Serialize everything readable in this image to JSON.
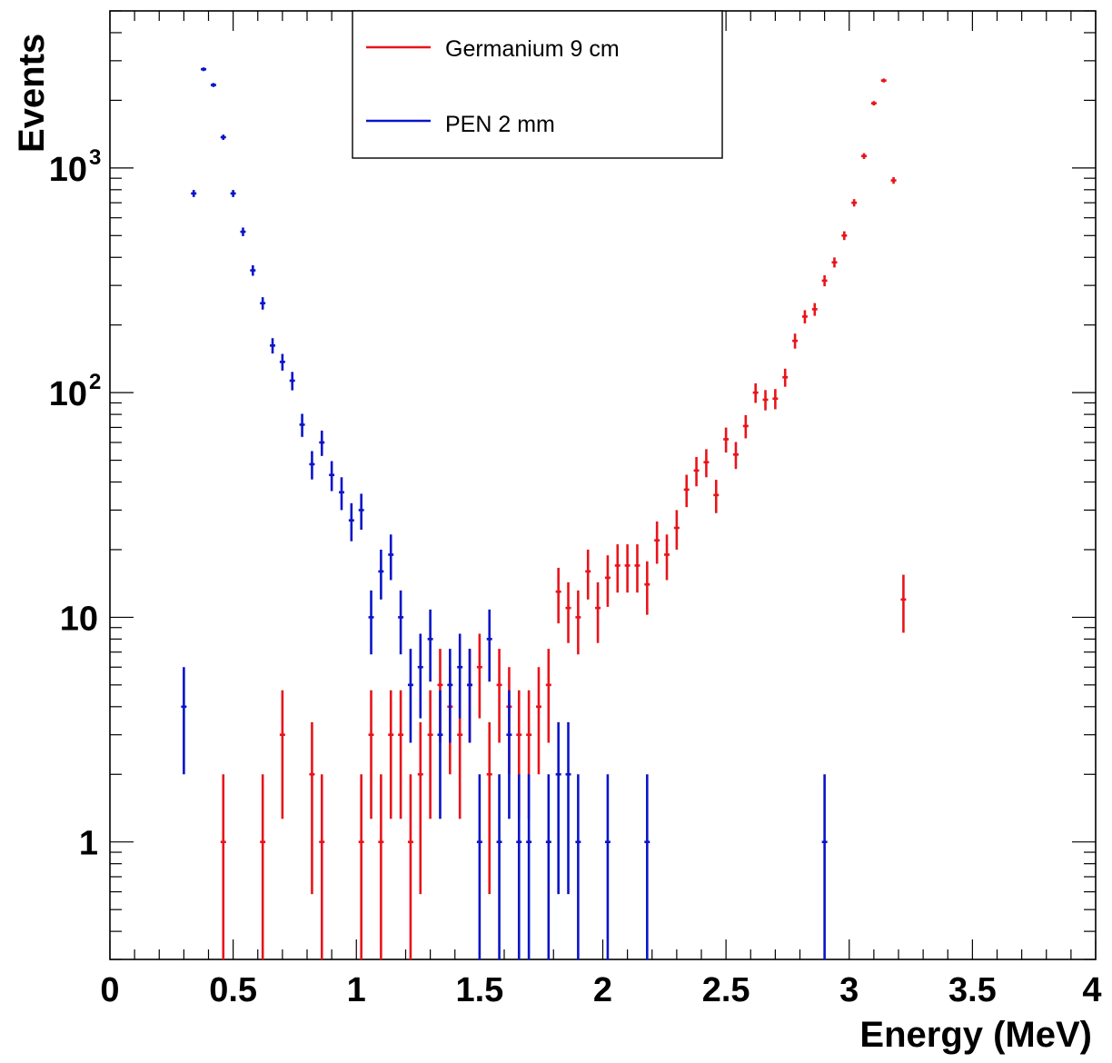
{
  "chart_data": {
    "type": "scatter",
    "title": "",
    "xlabel": "Energy (MeV)",
    "ylabel": "Events",
    "xlim": [
      0,
      4
    ],
    "ylim": [
      0.3,
      5000
    ],
    "yscale": "log",
    "grid": false,
    "legend_position": "top-center",
    "x_ticks": [
      "0",
      "0.5",
      "1",
      "1.5",
      "2",
      "2.5",
      "3",
      "3.5",
      "4"
    ],
    "y_ticks": [
      {
        "value": 1,
        "base": "1",
        "exp": ""
      },
      {
        "value": 10,
        "base": "10",
        "exp": ""
      },
      {
        "value": 100,
        "base": "10",
        "exp": "2"
      },
      {
        "value": 1000,
        "base": "10",
        "exp": "3"
      }
    ],
    "bin_width": 0.04,
    "series": [
      {
        "name": "Germanium 9 cm",
        "color": "#e8141b",
        "points": [
          [
            0.46,
            1
          ],
          [
            0.62,
            1
          ],
          [
            0.7,
            3
          ],
          [
            0.82,
            2
          ],
          [
            0.86,
            1
          ],
          [
            1.02,
            1
          ],
          [
            1.06,
            3
          ],
          [
            1.1,
            1
          ],
          [
            1.14,
            3
          ],
          [
            1.18,
            3
          ],
          [
            1.22,
            1
          ],
          [
            1.26,
            2
          ],
          [
            1.3,
            3
          ],
          [
            1.34,
            5
          ],
          [
            1.38,
            4
          ],
          [
            1.42,
            3
          ],
          [
            1.46,
            5
          ],
          [
            1.5,
            6
          ],
          [
            1.54,
            2
          ],
          [
            1.58,
            5
          ],
          [
            1.62,
            4
          ],
          [
            1.66,
            3
          ],
          [
            1.7,
            3
          ],
          [
            1.74,
            4
          ],
          [
            1.78,
            5
          ],
          [
            1.82,
            13
          ],
          [
            1.86,
            11
          ],
          [
            1.9,
            10
          ],
          [
            1.94,
            16
          ],
          [
            1.98,
            11
          ],
          [
            2.02,
            15
          ],
          [
            2.06,
            17
          ],
          [
            2.1,
            17
          ],
          [
            2.14,
            17
          ],
          [
            2.18,
            14
          ],
          [
            2.22,
            22
          ],
          [
            2.26,
            19
          ],
          [
            2.3,
            25
          ],
          [
            2.34,
            37
          ],
          [
            2.38,
            45
          ],
          [
            2.42,
            49
          ],
          [
            2.46,
            35
          ],
          [
            2.5,
            62
          ],
          [
            2.54,
            53
          ],
          [
            2.58,
            71
          ],
          [
            2.62,
            100
          ],
          [
            2.66,
            93
          ],
          [
            2.7,
            94
          ],
          [
            2.74,
            117
          ],
          [
            2.78,
            170
          ],
          [
            2.82,
            218
          ],
          [
            2.86,
            235
          ],
          [
            2.9,
            315
          ],
          [
            2.94,
            380
          ],
          [
            2.98,
            500
          ],
          [
            3.02,
            700
          ],
          [
            3.06,
            1130
          ],
          [
            3.1,
            1940
          ],
          [
            3.14,
            2450
          ],
          [
            3.18,
            880
          ],
          [
            3.22,
            12
          ]
        ]
      },
      {
        "name": "PEN 2 mm",
        "color": "#0a14c8",
        "points": [
          [
            0.3,
            4
          ],
          [
            0.34,
            770
          ],
          [
            0.38,
            2750
          ],
          [
            0.42,
            2340
          ],
          [
            0.46,
            1370
          ],
          [
            0.5,
            770
          ],
          [
            0.54,
            520
          ],
          [
            0.58,
            350
          ],
          [
            0.62,
            250
          ],
          [
            0.66,
            162
          ],
          [
            0.7,
            137
          ],
          [
            0.74,
            113
          ],
          [
            0.78,
            72
          ],
          [
            0.82,
            48
          ],
          [
            0.86,
            60
          ],
          [
            0.9,
            43
          ],
          [
            0.94,
            36
          ],
          [
            0.98,
            27
          ],
          [
            1.02,
            30
          ],
          [
            1.06,
            10
          ],
          [
            1.1,
            16
          ],
          [
            1.14,
            19
          ],
          [
            1.18,
            10
          ],
          [
            1.22,
            5
          ],
          [
            1.26,
            6
          ],
          [
            1.3,
            8
          ],
          [
            1.34,
            3
          ],
          [
            1.38,
            5
          ],
          [
            1.42,
            6
          ],
          [
            1.46,
            5
          ],
          [
            1.5,
            1
          ],
          [
            1.54,
            8
          ],
          [
            1.58,
            1
          ],
          [
            1.62,
            3
          ],
          [
            1.66,
            1
          ],
          [
            1.7,
            1
          ],
          [
            1.78,
            1
          ],
          [
            1.82,
            2
          ],
          [
            1.86,
            2
          ],
          [
            1.9,
            1
          ],
          [
            2.02,
            1
          ],
          [
            2.18,
            1
          ],
          [
            2.9,
            1
          ]
        ]
      }
    ]
  }
}
